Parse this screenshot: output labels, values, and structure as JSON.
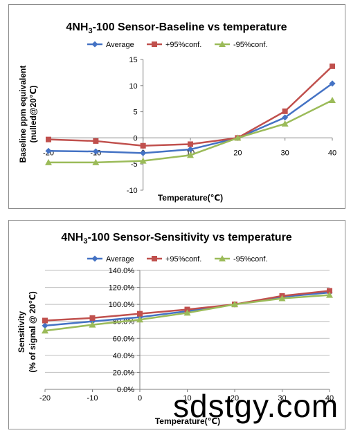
{
  "chart_data": [
    {
      "type": "line",
      "title_pre": "4NH",
      "title_sub": "3",
      "title_post": "-100 Sensor-Baseline vs temperature",
      "xlabel": "Temperature(℃)",
      "ylabel_line1": "Baseline ppm equivalent",
      "ylabel_line2": "(nulled@20℃)",
      "x": [
        -20,
        -10,
        0,
        10,
        20,
        30,
        40
      ],
      "xlim": [
        -20,
        40
      ],
      "ylim": [
        -10,
        15
      ],
      "x_ticks": [
        "-20",
        "-10",
        "0",
        "10",
        "20",
        "30",
        "40"
      ],
      "y_ticks": [
        "-10",
        "-5",
        "0",
        "5",
        "10",
        "15"
      ],
      "y_tick_values": [
        -10,
        -5,
        0,
        5,
        10,
        15
      ],
      "grid": false,
      "legend_position": "top",
      "series": [
        {
          "name": "Average",
          "values": [
            -2.5,
            -2.6,
            -2.9,
            -2.2,
            0,
            3.9,
            10.4
          ],
          "color": "#4472c4",
          "marker": "diamond"
        },
        {
          "name": "+95%conf.",
          "values": [
            -0.3,
            -0.6,
            -1.5,
            -1.2,
            0,
            5.1,
            13.7
          ],
          "color": "#c0504d",
          "marker": "square"
        },
        {
          "name": "-95%conf.",
          "values": [
            -4.7,
            -4.7,
            -4.4,
            -3.3,
            0,
            2.7,
            7.2
          ],
          "color": "#9bbb59",
          "marker": "triangle"
        }
      ]
    },
    {
      "type": "line",
      "title_pre": "4NH",
      "title_sub": "3",
      "title_post": "-100 Sensor-Sensitivity vs temperature",
      "xlabel": "Temperature(℃)",
      "ylabel_line1": "Sensitivity",
      "ylabel_line2": "(% of signal @ 20℃)",
      "x": [
        -20,
        -10,
        0,
        10,
        20,
        30,
        40
      ],
      "xlim": [
        -20,
        40
      ],
      "ylim": [
        0,
        140
      ],
      "x_ticks": [
        "-20",
        "-10",
        "0",
        "10",
        "20",
        "30",
        "40"
      ],
      "y_ticks": [
        "0.0%",
        "20.0%",
        "40.0%",
        "60.0%",
        "80.0%",
        "100.0%",
        "120.0%",
        "140.0%"
      ],
      "y_tick_values": [
        0,
        20,
        40,
        60,
        80,
        100,
        120,
        140
      ],
      "grid": true,
      "legend_position": "top",
      "series": [
        {
          "name": "Average",
          "values": [
            75,
            80,
            85,
            92,
            100,
            109,
            114
          ],
          "color": "#4472c4",
          "marker": "diamond"
        },
        {
          "name": "+95%conf.",
          "values": [
            81,
            84,
            89,
            94,
            100,
            110,
            116
          ],
          "color": "#c0504d",
          "marker": "square"
        },
        {
          "name": "-95%conf.",
          "values": [
            69,
            76,
            82,
            90,
            100,
            107,
            111
          ],
          "color": "#9bbb59",
          "marker": "triangle"
        }
      ]
    }
  ],
  "watermark": "sdstgy.com"
}
